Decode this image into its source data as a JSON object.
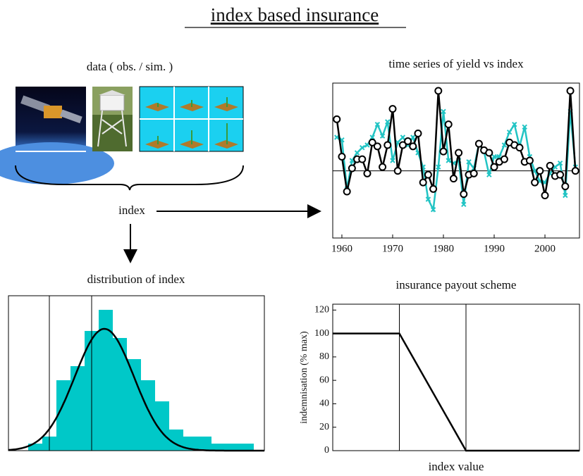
{
  "title": "index based insurance",
  "data_panel": {
    "label": "data ( obs. / sim. )"
  },
  "index_label": "index",
  "chart_data": [
    {
      "type": "line",
      "title": "time series of yield vs index",
      "x": [
        1959,
        1960,
        1961,
        1962,
        1963,
        1964,
        1965,
        1966,
        1967,
        1968,
        1969,
        1970,
        1971,
        1972,
        1973,
        1974,
        1975,
        1976,
        1977,
        1978,
        1979,
        1980,
        1981,
        1982,
        1983,
        1984,
        1985,
        1986,
        1987,
        1988,
        1989,
        1990,
        1991,
        1992,
        1993,
        1994,
        1995,
        1996,
        1997,
        1998,
        1999,
        2000,
        2001,
        2002,
        2003,
        2004,
        2005,
        2006
      ],
      "series": [
        {
          "color": "#22c4c4",
          "marker": "x",
          "values": [
            1.3,
            1.2,
            -0.7,
            0.4,
            0.7,
            0.9,
            1.0,
            1.3,
            1.8,
            1.35,
            1.9,
            0.4,
            1.1,
            1.3,
            1.0,
            1.3,
            0.7,
            0.15,
            -1.1,
            -1.5,
            0.15,
            2.3,
            0.4,
            0.3,
            0.4,
            -1.3,
            0.35,
            0.1,
            1.05,
            0.75,
            -0.15,
            0.55,
            0.55,
            1.0,
            1.5,
            1.8,
            0.95,
            1.7,
            0.55,
            0,
            -0.4,
            -0.45,
            -0.1,
            0.15,
            0.3,
            -0.95,
            2.3,
            0.15
          ]
        },
        {
          "color": "#000000",
          "marker": "circle",
          "values": [
            2.0,
            0.55,
            -0.8,
            0.1,
            0.45,
            0.45,
            -0.1,
            1.1,
            0.95,
            0.15,
            1.0,
            2.4,
            0,
            1.0,
            1.15,
            0.95,
            1.45,
            -0.45,
            -0.15,
            -0.7,
            3.1,
            0.75,
            1.8,
            -0.3,
            0.7,
            -0.9,
            -0.15,
            -0.1,
            1.05,
            0.8,
            0.7,
            0.15,
            0.35,
            0.45,
            1.1,
            1.0,
            0.9,
            0.35,
            0.4,
            -0.45,
            0,
            -0.95,
            0.2,
            -0.2,
            -0.15,
            -0.6,
            3.1,
            0
          ]
        }
      ],
      "xlim": [
        1958.2,
        2006.8
      ],
      "ylim": [
        -2.6,
        3.4
      ],
      "xticks": [
        1960,
        1970,
        1980,
        1990,
        2000
      ],
      "hline": 0
    },
    {
      "type": "histogram",
      "title": "distribution of index",
      "bins": [
        28,
        48,
        68,
        88,
        108,
        128,
        148,
        168,
        188,
        208,
        228,
        248,
        268,
        288,
        308,
        328,
        348
      ],
      "counts": [
        1,
        2,
        10,
        12,
        17,
        20,
        16,
        13,
        10,
        7,
        3,
        2,
        2,
        1,
        1,
        1
      ],
      "color": "#00c8c8",
      "xlim": [
        0,
        363
      ],
      "ylim": [
        0,
        22
      ],
      "vlines": [
        58,
        118
      ],
      "curve": {
        "mean": 136,
        "sd": 42,
        "peak": 17.3
      }
    },
    {
      "type": "line",
      "title": "insurance payout scheme",
      "ylabel": "indemnisation (% max)",
      "xlabel": "index value",
      "x": [
        0,
        27,
        54,
        100
      ],
      "values": [
        100,
        100,
        0,
        0
      ],
      "color": "#000000",
      "xlim": [
        0,
        100
      ],
      "ylim": [
        0,
        125
      ],
      "yticks": [
        0,
        20,
        40,
        60,
        80,
        100,
        120
      ],
      "vlines": [
        27,
        54
      ]
    }
  ]
}
